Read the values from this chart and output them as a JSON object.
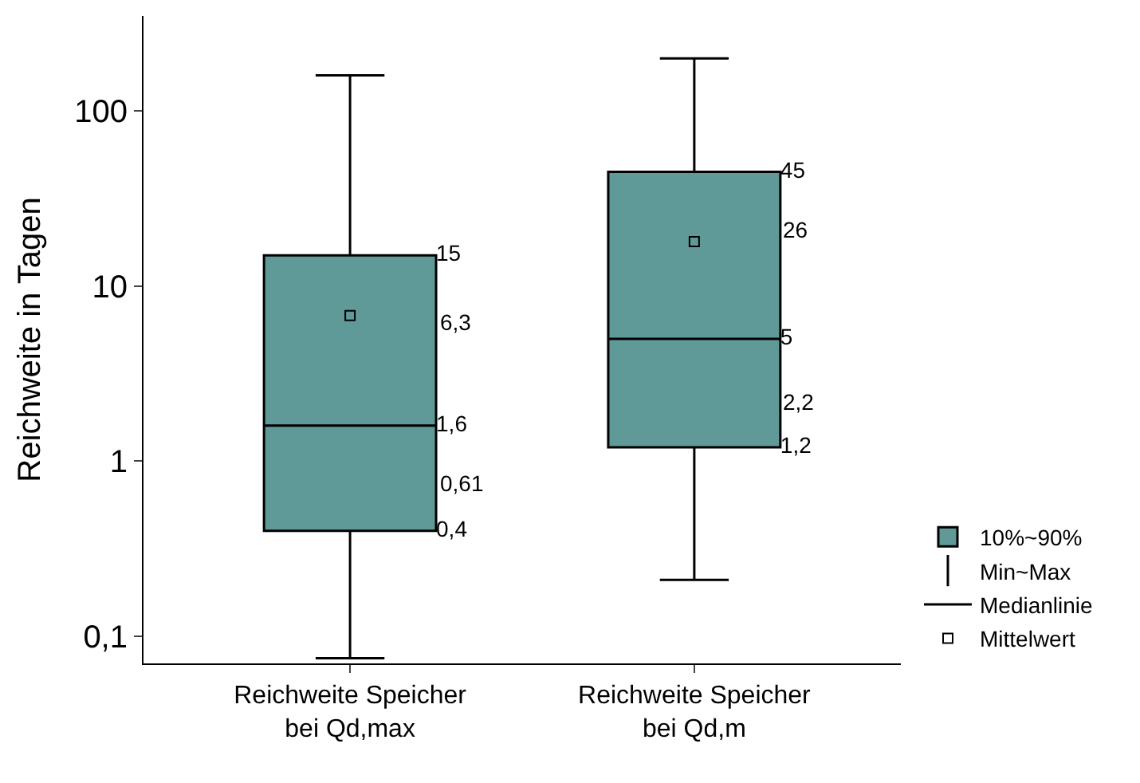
{
  "chart_data": {
    "type": "box",
    "ylabel": "Reichweite in Tagen",
    "categories": [
      "Reichweite Speicher\nbei Qd,max",
      "Reichweite Speicher\nbei Qd,m"
    ],
    "series": [
      {
        "name": "10%~90%",
        "color": "#5f9a98",
        "boxes": [
          {
            "low": 0.075,
            "q1": 0.4,
            "median": 1.6,
            "q3": 15,
            "high": 160
          },
          {
            "low": 0.21,
            "q1": 1.2,
            "median": 5,
            "q3": 45,
            "high": 200
          }
        ],
        "value_labels": [
          [
            "0,4",
            "1,6",
            "15"
          ],
          [
            "1,2",
            "5",
            "45"
          ]
        ]
      },
      {
        "type": "scatter",
        "name": "Mittelwert",
        "color": "#000000",
        "values": [
          6.8,
          18
        ]
      }
    ],
    "log": "y",
    "ylim": [
      0.07,
      350
    ],
    "yticks": [
      {
        "value": 0.1,
        "label": "0,1"
      },
      1,
      10,
      100
    ],
    "legend": "bottom right",
    "marker": "square",
    "annotations": [
      "Min~Max",
      "Medianlinie",
      "6,3",
      "0,61",
      "26",
      "2,2"
    ]
  }
}
